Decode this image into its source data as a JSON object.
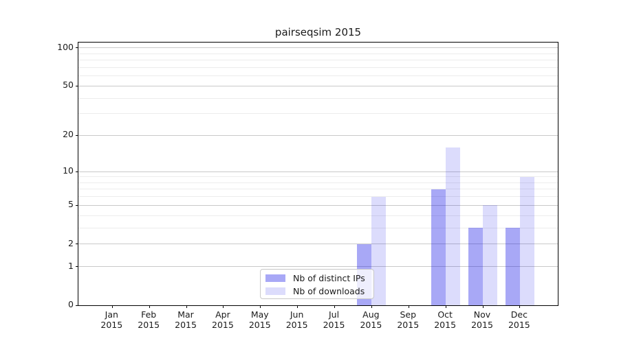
{
  "chart_data": {
    "type": "bar",
    "title": "pairseqsim 2015",
    "x_tick_months": [
      "Jan",
      "Feb",
      "Mar",
      "Apr",
      "May",
      "Jun",
      "Jul",
      "Aug",
      "Sep",
      "Oct",
      "Nov",
      "Dec"
    ],
    "x_tick_year": "2015",
    "categories": [
      "Jan 2015",
      "Feb 2015",
      "Mar 2015",
      "Apr 2015",
      "May 2015",
      "Jun 2015",
      "Jul 2015",
      "Aug 2015",
      "Sep 2015",
      "Oct 2015",
      "Nov 2015",
      "Dec 2015"
    ],
    "series": [
      {
        "name": "Nb of distinct IPs",
        "values": [
          0,
          0,
          0,
          0,
          0,
          0,
          0,
          2,
          0,
          7,
          3,
          3
        ],
        "color": "rgba(0,0,230,0.34)"
      },
      {
        "name": "Nb of downloads",
        "values": [
          0,
          0,
          0,
          0,
          0,
          0,
          0,
          6,
          0,
          16,
          5,
          9
        ],
        "color": "rgba(0,0,230,0.137)"
      }
    ],
    "xlabel": "",
    "ylabel": "",
    "y_scale": "log1p",
    "y_ticks": [
      0,
      1,
      2,
      5,
      10,
      20,
      50,
      100
    ],
    "y_minor_gridlines": [
      3,
      4,
      6,
      7,
      8,
      9,
      30,
      40,
      60,
      70,
      80,
      90
    ],
    "ylim": [
      0,
      110
    ],
    "grid": true,
    "legend_position": "lower center-left inside plot"
  },
  "colors": {
    "bar_distinct_ips": "rgba(0,0,230,0.34)",
    "bar_downloads": "rgba(0,0,230,0.137)",
    "major_grid": "#c9c9c9",
    "minor_grid": "#ececec",
    "axis": "#000000",
    "text": "#1a1a1a",
    "legend_background": "rgba(255,255,255,0.8)",
    "legend_border": "#c8c8c8"
  }
}
